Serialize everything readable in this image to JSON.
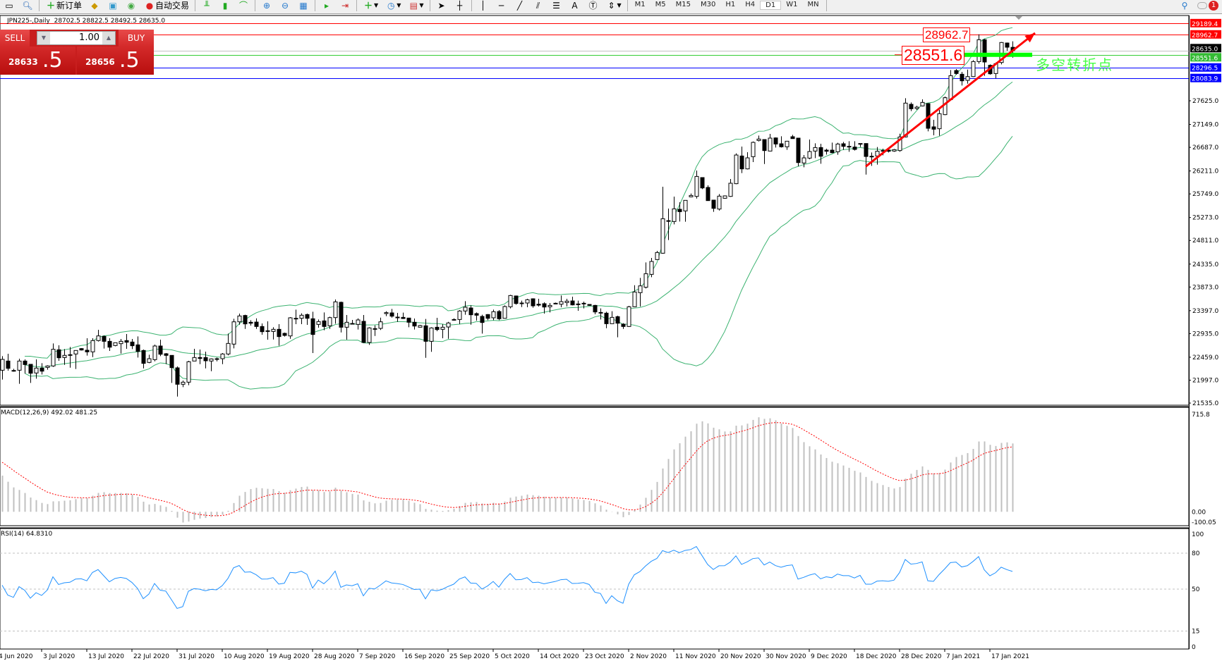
{
  "toolbar": {
    "new_order": "新订单",
    "auto_trading": "自动交易",
    "timeframes": [
      "M1",
      "M5",
      "M15",
      "M30",
      "H1",
      "H4",
      "D1",
      "W1",
      "MN"
    ],
    "selected_timeframe": "D1",
    "notification_count": "1"
  },
  "chart_header": "JPN225-,Daily  28702.5 28822.5 28492.5 28635.0",
  "trade_panel": {
    "sell_label": "SELL",
    "buy_label": "BUY",
    "volume": "1.00",
    "sell_price_main": "28633",
    "sell_price_pip": ".5",
    "buy_price_main": "28656",
    "buy_price_pip": ".5"
  },
  "annotations": {
    "resistance_label": "28962.7",
    "pivot_label": "28551.6",
    "pivot_text": "多空转折点"
  },
  "indicators": {
    "macd_label": "MACD(12,26,9) 492.02 481.25",
    "rsi_label": "RSI(14) 64.8310"
  },
  "colors": {
    "bull_body": "#ffffff",
    "bear_body": "#000000",
    "bands": "#3cb371",
    "macd_hist": "#c0c0c0",
    "macd_signal": "#ff0000",
    "rsi_line": "#1e90ff",
    "trend_arrow": "#ff0000",
    "pivot_bar": "#00ff00"
  },
  "chart_data": [
    {
      "type": "candlestick",
      "symbol": "JPN225-",
      "timeframe": "Daily",
      "ylim": [
        21535.0,
        29343.0
      ],
      "y_ticks": [
        "27625.0",
        "27149.0",
        "26687.0",
        "26211.0",
        "25749.0",
        "25273.0",
        "24811.0",
        "24335.0",
        "23873.0",
        "23397.0",
        "22935.0",
        "22459.0",
        "21997.0",
        "21535.0"
      ],
      "x_tick_labels": [
        "4 Jun 2020",
        "3 Jul 2020",
        "13 Jul 2020",
        "22 Jul 2020",
        "31 Jul 2020",
        "10 Aug 2020",
        "19 Aug 2020",
        "28 Aug 2020",
        "7 Sep 2020",
        "16 Sep 2020",
        "25 Sep 2020",
        "5 Oct 2020",
        "14 Oct 2020",
        "23 Oct 2020",
        "2 Nov 2020",
        "11 Nov 2020",
        "20 Nov 2020",
        "30 Nov 2020",
        "9 Dec 2020",
        "18 Dec 2020",
        "28 Dec 2020",
        "7 Jan 2021",
        "17 Jan 2021"
      ],
      "bollinger": {
        "period": 20,
        "deviations": 2
      },
      "levels": [
        {
          "value": "29189.4",
          "color": "#ff0000"
        },
        {
          "value": "28962.7",
          "color": "#ff0000"
        },
        {
          "value": "28635.0",
          "color": "#000000"
        },
        {
          "value": "28551.6",
          "color": "#33bb33"
        },
        {
          "value": "28296.5",
          "color": "#0000ff"
        },
        {
          "value": "28083.9",
          "color": "#0000ff"
        }
      ],
      "trend_arrow": {
        "from_bar": 153,
        "from_price": 26300,
        "to_bar": 183,
        "to_price": 28990
      },
      "ohlc": [
        [
          22197,
          22481,
          22008,
          22415
        ],
        [
          22382,
          22529,
          22188,
          22235
        ],
        [
          22192,
          22226,
          22169,
          22188
        ],
        [
          22197,
          22429,
          21923,
          22382
        ],
        [
          22382,
          22415,
          22131,
          22311
        ],
        [
          22316,
          22320,
          21942,
          22136
        ],
        [
          22141,
          22415,
          22027,
          22240
        ],
        [
          22240,
          22339,
          22112,
          22178
        ],
        [
          22254,
          22297,
          22207,
          22283
        ],
        [
          22283,
          22737,
          22264,
          22619
        ],
        [
          22609,
          22699,
          22387,
          22448
        ],
        [
          22453,
          22623,
          22306,
          22496
        ],
        [
          22505,
          22666,
          22249,
          22510
        ],
        [
          22524,
          22600,
          22221,
          22595
        ],
        [
          22633,
          22642,
          22595,
          22604
        ],
        [
          22600,
          22841,
          22491,
          22567
        ],
        [
          22567,
          22841,
          22462,
          22794
        ],
        [
          22794,
          23011,
          22775,
          22888
        ],
        [
          22879,
          22898,
          22633,
          22779
        ],
        [
          22779,
          22841,
          22586,
          22661
        ],
        [
          22694,
          22756,
          22680,
          22751
        ],
        [
          22732,
          22827,
          22533,
          22779
        ],
        [
          22794,
          22926,
          22628,
          22761
        ],
        [
          22765,
          22827,
          22623,
          22690
        ],
        [
          22708,
          22879,
          22453,
          22576
        ],
        [
          22595,
          22614,
          22235,
          22335
        ],
        [
          22354,
          22510,
          22339,
          22429
        ],
        [
          22410,
          22713,
          22377,
          22685
        ],
        [
          22685,
          22812,
          22481,
          22519
        ],
        [
          22529,
          22543,
          22320,
          22496
        ],
        [
          22496,
          22500,
          21942,
          22249
        ],
        [
          22245,
          22273,
          21667,
          21914
        ],
        [
          21914,
          21989,
          21857,
          21956
        ],
        [
          21956,
          22387,
          21895,
          22368
        ],
        [
          22382,
          22628,
          22380,
          22453
        ],
        [
          22453,
          22614,
          22320,
          22434
        ],
        [
          22453,
          22571,
          22235,
          22387
        ],
        [
          22382,
          22434,
          22178,
          22425
        ],
        [
          22429,
          22453,
          22377,
          22415
        ],
        [
          22429,
          22543,
          22320,
          22524
        ],
        [
          22524,
          22936,
          22496,
          22737
        ],
        [
          22723,
          23234,
          22637,
          23172
        ],
        [
          23172,
          23338,
          23115,
          23290
        ],
        [
          23300,
          23314,
          23030,
          23130
        ],
        [
          23163,
          23205,
          23096,
          23144
        ],
        [
          23167,
          23243,
          23030,
          23078
        ],
        [
          23078,
          23139,
          22912,
          22973
        ],
        [
          22992,
          23182,
          22812,
          22978
        ],
        [
          22978,
          23063,
          22817,
          23021
        ],
        [
          23021,
          23125,
          22690,
          22874
        ],
        [
          22940,
          22955,
          22874,
          22898
        ],
        [
          22888,
          23267,
          22831,
          23253
        ],
        [
          23240,
          23418,
          23125,
          23243
        ],
        [
          23243,
          23343,
          23125,
          23305
        ],
        [
          23319,
          23338,
          23111,
          23243
        ],
        [
          23234,
          23376,
          22543,
          22917
        ],
        [
          23120,
          23219,
          23054,
          23177
        ],
        [
          23191,
          23361,
          23002,
          23078
        ],
        [
          23092,
          23276,
          23030,
          23257
        ],
        [
          23257,
          23622,
          23134,
          23574
        ],
        [
          23565,
          23579,
          22959,
          23063
        ],
        [
          23063,
          23309,
          22812,
          23163
        ],
        [
          23139,
          23210,
          23125,
          23134
        ],
        [
          23120,
          23243,
          23016,
          23210
        ],
        [
          23182,
          23309,
          22746,
          22756
        ],
        [
          22756,
          23063,
          22708,
          23049
        ],
        [
          23035,
          23101,
          22888,
          23021
        ],
        [
          23040,
          23257,
          23007,
          23172
        ],
        [
          23338,
          23385,
          23286,
          23357
        ],
        [
          23352,
          23432,
          23257,
          23286
        ],
        [
          23265,
          23352,
          23172,
          23267
        ],
        [
          23262,
          23357,
          23229,
          23238
        ],
        [
          23248,
          23250,
          23063,
          23163
        ],
        [
          23163,
          23238,
          23016,
          23087
        ],
        [
          23063,
          23111,
          23060,
          23097
        ],
        [
          23092,
          23229,
          22448,
          22779
        ],
        [
          22779,
          23063,
          22567,
          23049
        ],
        [
          23063,
          23253,
          22983,
          23016
        ],
        [
          23021,
          23125,
          22841,
          23063
        ],
        [
          23068,
          23172,
          22831,
          23149
        ],
        [
          23215,
          23243,
          23196,
          23219
        ],
        [
          23219,
          23409,
          23125,
          23390
        ],
        [
          23390,
          23589,
          23314,
          23466
        ],
        [
          23451,
          23503,
          23115,
          23314
        ],
        [
          23338,
          23361,
          23196,
          23305
        ],
        [
          23281,
          23314,
          22936,
          23158
        ],
        [
          23319,
          23328,
          23205,
          23243
        ],
        [
          23253,
          23418,
          23205,
          23376
        ],
        [
          23380,
          23409,
          23205,
          23234
        ],
        [
          23243,
          23503,
          23240,
          23480
        ],
        [
          23475,
          23716,
          23442,
          23702
        ],
        [
          23693,
          23702,
          23518,
          23541
        ],
        [
          23548,
          23598,
          23470,
          23551
        ],
        [
          23551,
          23636,
          23466,
          23617
        ],
        [
          23636,
          23645,
          23456,
          23494
        ],
        [
          23527,
          23636,
          23480,
          23508
        ],
        [
          23537,
          23565,
          23338,
          23470
        ],
        [
          23475,
          23551,
          23361,
          23503
        ],
        [
          23546,
          23560,
          23527,
          23532
        ],
        [
          23527,
          23702,
          23466,
          23579
        ],
        [
          23560,
          23636,
          23484,
          23589
        ],
        [
          23593,
          23679,
          23503,
          23513
        ],
        [
          23532,
          23598,
          23395,
          23518
        ],
        [
          23546,
          23579,
          23442,
          23532
        ],
        [
          23522,
          23527,
          23494,
          23503
        ],
        [
          23503,
          23513,
          23324,
          23371
        ],
        [
          23361,
          23442,
          23219,
          23347
        ],
        [
          23347,
          23376,
          23044,
          23134
        ],
        [
          23134,
          23385,
          23130,
          23262
        ],
        [
          23276,
          23295,
          22860,
          23144
        ],
        [
          23125,
          23144,
          23030,
          23078
        ],
        [
          23078,
          23494,
          23068,
          23475
        ],
        [
          23475,
          23910,
          23466,
          23773
        ],
        [
          23759,
          24057,
          23480,
          23896
        ],
        [
          23868,
          24369,
          23844,
          24142
        ],
        [
          24128,
          24459,
          24071,
          24388
        ],
        [
          24426,
          24601,
          24426,
          24568
        ],
        [
          24554,
          25893,
          24544,
          25249
        ],
        [
          25210,
          25453,
          24819,
          25202
        ],
        [
          25193,
          25694,
          25136,
          25448
        ],
        [
          25439,
          25581,
          25193,
          25391
        ],
        [
          25406,
          25619,
          25188,
          25619
        ],
        [
          25690,
          25756,
          25680,
          25718
        ],
        [
          25699,
          26220,
          25656,
          26101
        ],
        [
          26078,
          26080,
          25846,
          25869
        ],
        [
          25879,
          25921,
          25614,
          25614
        ],
        [
          25624,
          25626,
          25387,
          25458
        ],
        [
          25444,
          25746,
          25415,
          25704
        ],
        [
          25661,
          25718,
          25652,
          25709
        ],
        [
          25699,
          26049,
          25690,
          25964
        ],
        [
          25955,
          26565,
          25945,
          26532
        ],
        [
          26513,
          26702,
          26168,
          26253
        ],
        [
          26253,
          26589,
          26243,
          26475
        ],
        [
          26499,
          26806,
          26390,
          26787
        ],
        [
          26825,
          26925,
          26806,
          26854
        ],
        [
          26844,
          26846,
          26352,
          26622
        ],
        [
          26612,
          26958,
          26610,
          26873
        ],
        [
          26877,
          26887,
          26683,
          26754
        ],
        [
          26759,
          26910,
          26683,
          26698
        ],
        [
          26698,
          26812,
          26636,
          26811
        ],
        [
          26901,
          26939,
          26862,
          26863
        ],
        [
          26873,
          26874,
          26305,
          26380
        ],
        [
          26371,
          26532,
          26286,
          26475
        ],
        [
          26470,
          26844,
          26447,
          26603
        ],
        [
          26612,
          26768,
          26470,
          26683
        ],
        [
          26683,
          26759,
          26357,
          26508
        ],
        [
          26631,
          26660,
          26541,
          26608
        ],
        [
          26631,
          26783,
          26570,
          26579
        ],
        [
          26598,
          26778,
          26537,
          26754
        ],
        [
          26759,
          26797,
          26636,
          26707
        ],
        [
          26705,
          26811,
          26598,
          26707
        ],
        [
          26693,
          26811,
          26622,
          26645
        ],
        [
          26764,
          26765,
          26693,
          26750
        ],
        [
          26764,
          26765,
          26139,
          26503
        ],
        [
          26508,
          26584,
          26314,
          26503
        ],
        [
          26513,
          26693,
          26338,
          26608
        ],
        [
          26620,
          26660,
          26527,
          26622
        ],
        [
          26631,
          26655,
          26584,
          26608
        ],
        [
          26612,
          26655,
          26598,
          26641
        ],
        [
          26622,
          26962,
          26598,
          26896
        ],
        [
          26896,
          27677,
          26887,
          27578
        ],
        [
          27554,
          27592,
          27417,
          27464
        ],
        [
          27469,
          27526,
          27440,
          27497
        ],
        [
          27521,
          27653,
          27512,
          27592
        ],
        [
          27568,
          27578,
          27010,
          27071
        ],
        [
          27100,
          27242,
          26929,
          27052
        ],
        [
          27062,
          27440,
          26920,
          27365
        ],
        [
          27346,
          27710,
          27336,
          27687
        ],
        [
          27649,
          28245,
          27639,
          28131
        ],
        [
          28235,
          28264,
          28150,
          28174
        ],
        [
          28160,
          28207,
          27933,
          28027
        ],
        [
          28037,
          28254,
          27970,
          28112
        ],
        [
          28112,
          28444,
          28103,
          28415
        ],
        [
          28415,
          28964,
          28373,
          28855
        ],
        [
          28855,
          28870,
          28127,
          28406
        ],
        [
          28340,
          28358,
          28150,
          28169
        ],
        [
          28174,
          28396,
          28079,
          28373
        ],
        [
          28396,
          28808,
          28358,
          28799
        ],
        [
          28789,
          28799,
          28633,
          28704
        ],
        [
          28702.5,
          28822.5,
          28492.5,
          28635.0
        ]
      ]
    },
    {
      "type": "bar+line",
      "indicator": "MACD(12,26,9)",
      "ylim": [
        -100.05,
        715.8
      ],
      "y_ticks": [
        "715.8",
        "0.00",
        "-100.05"
      ],
      "last_macd": 492.02,
      "last_signal": 481.25,
      "left_edge_macd": 260,
      "left_edge_signal": 356
    },
    {
      "type": "line",
      "indicator": "RSI(14)",
      "ylim": [
        0,
        100
      ],
      "y_ticks": [
        "100",
        "80",
        "50",
        "15",
        "0"
      ],
      "levels": [
        80,
        50,
        15
      ],
      "last_value": 64.831
    }
  ]
}
